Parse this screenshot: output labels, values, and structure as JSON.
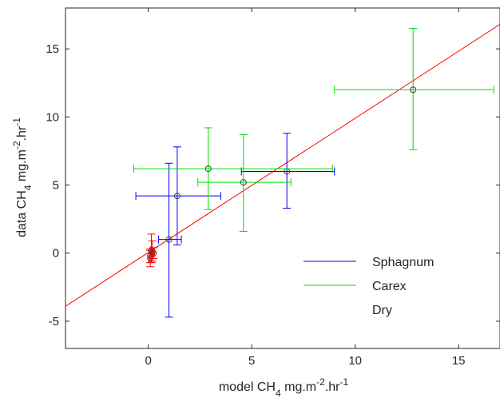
{
  "chart_data": {
    "type": "scatter",
    "title": "",
    "xlabel": {
      "prefix": "model CH",
      "sub": "4",
      "mid": " mg.m",
      "sup1": "-2",
      "mid2": ".hr",
      "sup2": "-1"
    },
    "ylabel": {
      "prefix": "data CH",
      "sub": "4",
      "mid": " mg.m",
      "sup1": "-2",
      "mid2": ".hr",
      "sup2": "-1"
    },
    "xlim": [
      -4,
      17
    ],
    "ylim": [
      -7,
      18
    ],
    "xticks": [
      0,
      5,
      10,
      15
    ],
    "yticks": [
      -5,
      0,
      5,
      10,
      15
    ],
    "grid": false,
    "legend_placement": "lower-right",
    "fit_line": {
      "x": [
        -4,
        17
      ],
      "y": [
        -3.9,
        16.8
      ],
      "color": "#ff0000"
    },
    "series": [
      {
        "name": "Sphagnum",
        "color": "#0000ff",
        "points": [
          {
            "x": 1.0,
            "y": 1.0,
            "xerr_low": 0.5,
            "xerr_high": 0.6,
            "yerr_low": 5.7,
            "yerr_high": 5.6
          },
          {
            "x": 1.4,
            "y": 4.2,
            "xerr_low": 2.0,
            "xerr_high": 2.1,
            "yerr_low": 3.6,
            "yerr_high": 3.6
          },
          {
            "x": 6.7,
            "y": 6.0,
            "xerr_low": 2.2,
            "xerr_high": 2.3,
            "yerr_low": 2.7,
            "yerr_high": 2.8
          }
        ]
      },
      {
        "name": "Carex",
        "color": "#00dd00",
        "points": [
          {
            "x": 2.9,
            "y": 6.2,
            "xerr_low": 3.6,
            "xerr_high": 6.0,
            "yerr_low": 3.0,
            "yerr_high": 3.0
          },
          {
            "x": 4.6,
            "y": 5.2,
            "xerr_low": 2.2,
            "xerr_high": 2.3,
            "yerr_low": 3.6,
            "yerr_high": 3.5
          },
          {
            "x": 12.8,
            "y": 12.0,
            "xerr_low": 3.8,
            "xerr_high": 3.9,
            "yerr_low": 4.4,
            "yerr_high": 4.5
          }
        ]
      },
      {
        "name": "Dry",
        "color": "#ff0000",
        "points": [
          {
            "x": 0.1,
            "y": -0.4,
            "xerr_low": 0.05,
            "xerr_high": 0.05,
            "yerr_low": 0.6,
            "yerr_high": 0.6
          },
          {
            "x": 0.15,
            "y": 0.2,
            "xerr_low": 0.05,
            "xerr_high": 0.05,
            "yerr_low": 0.9,
            "yerr_high": 1.2
          },
          {
            "x": 0.2,
            "y": 0.1,
            "xerr_low": 0.05,
            "xerr_high": 0.05,
            "yerr_low": 0.7,
            "yerr_high": 0.8
          },
          {
            "x": 0.1,
            "y": -0.2,
            "xerr_low": 0.05,
            "xerr_high": 0.05,
            "yerr_low": 0.5,
            "yerr_high": 0.5
          },
          {
            "x": 0.25,
            "y": 0.0,
            "xerr_low": 0.05,
            "xerr_high": 0.05,
            "yerr_low": 0.4,
            "yerr_high": 0.4
          }
        ]
      }
    ],
    "legend": [
      {
        "label": "Sphagnum",
        "color": "#0000ff"
      },
      {
        "label": "Carex",
        "color": "#00dd00"
      },
      {
        "label": "Dry",
        "color": "#ff0000",
        "line": false
      }
    ]
  }
}
